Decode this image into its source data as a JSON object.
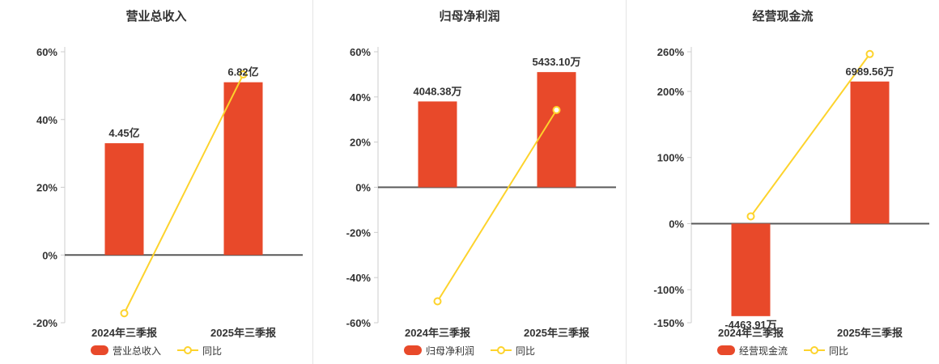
{
  "colors": {
    "bar": "#e8492a",
    "line": "#fdd32c",
    "zero_line": "#595959",
    "axis": "#cccccc",
    "text": "#333333",
    "divider": "#e4e4e4"
  },
  "chart_data": [
    {
      "type": "bar+line",
      "title": "营业总收入",
      "categories": [
        "2024年三季报",
        "2025年三季报"
      ],
      "ylim": [
        -20,
        60
      ],
      "y_ticks": [
        -20,
        0,
        20,
        40,
        60
      ],
      "y_tick_suffix": "%",
      "grid": false,
      "legend_position": "bottom",
      "bars": {
        "name": "营业总收入",
        "labels": [
          "4.45亿",
          "6.82亿"
        ],
        "plot_pct": [
          33,
          51
        ]
      },
      "line": {
        "name": "同比",
        "plot_pct": [
          -17.2,
          53.3
        ]
      }
    },
    {
      "type": "bar+line",
      "title": "归母净利润",
      "categories": [
        "2024年三季报",
        "2025年三季报"
      ],
      "ylim": [
        -60,
        60
      ],
      "y_ticks": [
        -60,
        -40,
        -20,
        0,
        20,
        40,
        60
      ],
      "y_tick_suffix": "%",
      "grid": false,
      "legend_position": "bottom",
      "bars": {
        "name": "归母净利润",
        "labels": [
          "4048.38万",
          "5433.10万"
        ],
        "plot_pct": [
          38,
          51
        ]
      },
      "line": {
        "name": "同比",
        "plot_pct": [
          -50.5,
          34.2
        ]
      }
    },
    {
      "type": "bar+line",
      "title": "经营现金流",
      "categories": [
        "2024年三季报",
        "2025年三季报"
      ],
      "ylim": [
        -150,
        260
      ],
      "y_ticks": [
        -150,
        -100,
        0,
        100,
        200,
        260
      ],
      "y_tick_suffix": "%",
      "grid": false,
      "legend_position": "bottom",
      "bars": {
        "name": "经营现金流",
        "labels": [
          "-4463.91万",
          "6989.56万"
        ],
        "plot_pct": [
          -140,
          215
        ]
      },
      "line": {
        "name": "同比",
        "plot_pct": [
          11,
          256.6
        ]
      }
    }
  ]
}
